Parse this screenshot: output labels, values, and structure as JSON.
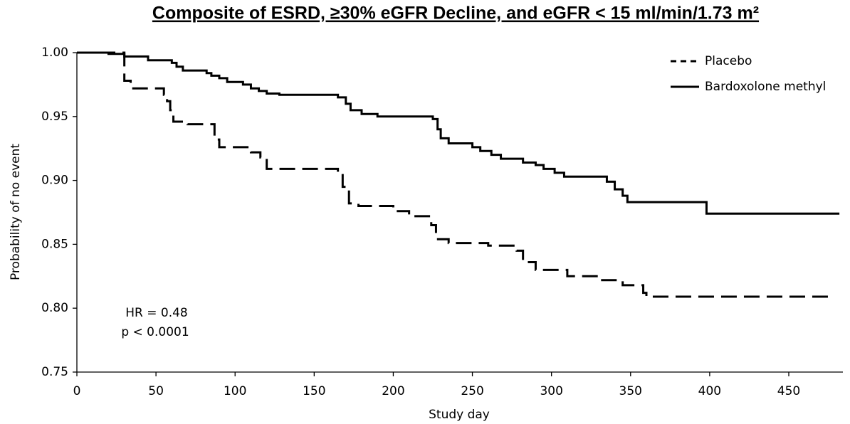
{
  "chart_data": {
    "type": "line",
    "step": "post",
    "title": "Composite of ESRD, ≥30% eGFR Decline, and eGFR < 15 ml/min/1.73 m²",
    "x_label": "Study day",
    "y_label": "Probability of no event",
    "annotations": [
      "HR = 0.48",
      "p < 0.0001"
    ],
    "legend": "upper right",
    "xlim": [
      0,
      484
    ],
    "xticks": [
      0,
      50,
      100,
      150,
      200,
      250,
      300,
      350,
      400,
      450
    ],
    "ylim": [
      0.75,
      1.0
    ],
    "yticks": [
      {
        "value": 0.75,
        "label": "0.75"
      },
      {
        "value": 0.8,
        "label": "0.80"
      },
      {
        "value": 0.85,
        "label": "0.85"
      },
      {
        "value": 0.9,
        "label": "0.90"
      },
      {
        "value": 0.95,
        "label": "0.95"
      },
      {
        "value": 1.0,
        "label": "1.00"
      }
    ],
    "series": [
      {
        "name": "Placebo",
        "color": "#000000",
        "linestyle": "dashed",
        "x": [
          0,
          30,
          34,
          55,
          57,
          59,
          61,
          70,
          87,
          90,
          110,
          116,
          120,
          165,
          168,
          172,
          178,
          200,
          210,
          224,
          227,
          235,
          260,
          278,
          282,
          290,
          310,
          330,
          345,
          358,
          360,
          478
        ],
        "values": [
          1.0,
          0.978,
          0.972,
          0.967,
          0.962,
          0.955,
          0.946,
          0.944,
          0.932,
          0.926,
          0.922,
          0.918,
          0.909,
          0.905,
          0.895,
          0.882,
          0.88,
          0.876,
          0.872,
          0.865,
          0.854,
          0.851,
          0.849,
          0.845,
          0.836,
          0.83,
          0.825,
          0.822,
          0.818,
          0.812,
          0.809,
          0.809
        ]
      },
      {
        "name": "Bardoxolone methyl",
        "color": "#000000",
        "linestyle": "solid",
        "x": [
          0,
          20,
          30,
          45,
          60,
          63,
          67,
          82,
          85,
          90,
          95,
          105,
          110,
          115,
          120,
          128,
          165,
          170,
          173,
          180,
          190,
          225,
          228,
          230,
          235,
          250,
          255,
          262,
          268,
          282,
          290,
          295,
          302,
          308,
          335,
          340,
          345,
          348,
          398,
          482
        ],
        "values": [
          1.0,
          0.999,
          0.997,
          0.994,
          0.992,
          0.989,
          0.986,
          0.984,
          0.982,
          0.98,
          0.977,
          0.975,
          0.972,
          0.97,
          0.968,
          0.967,
          0.965,
          0.96,
          0.955,
          0.952,
          0.95,
          0.948,
          0.94,
          0.933,
          0.929,
          0.926,
          0.923,
          0.92,
          0.917,
          0.914,
          0.912,
          0.909,
          0.906,
          0.903,
          0.899,
          0.893,
          0.888,
          0.883,
          0.874,
          0.874
        ]
      }
    ]
  }
}
